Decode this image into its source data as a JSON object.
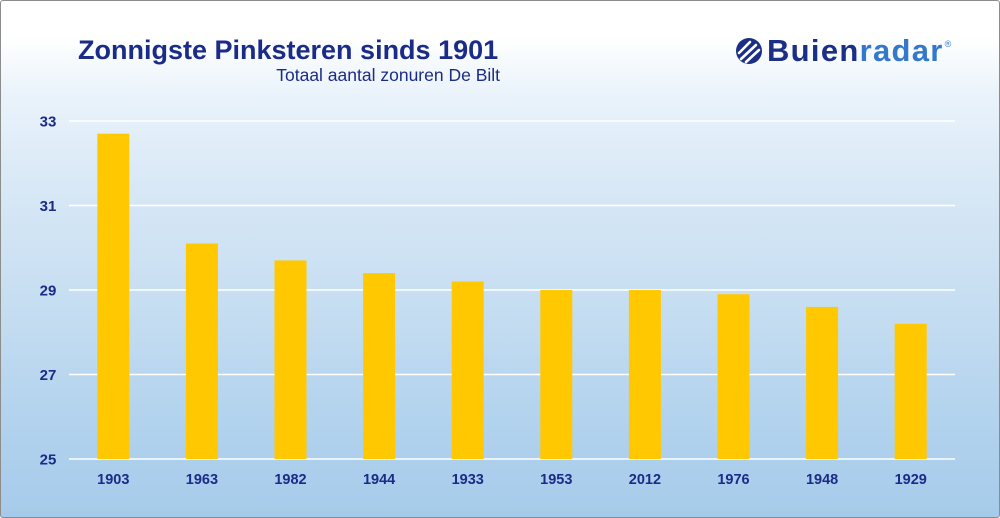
{
  "logo": {
    "icon": "buienradar-logo-icon",
    "text_dark": "Buien",
    "text_light": "radar",
    "registered": "®"
  },
  "colors": {
    "text": "#1b2b88",
    "logo_dark": "#1c2f86",
    "logo_light": "#3478cc"
  },
  "chart_data": {
    "type": "bar",
    "title": "Zonnigste Pinksteren sinds 1901",
    "subtitle": "Totaal aantal zonuren De Bilt",
    "xlabel": "",
    "ylabel": "",
    "categories": [
      "1903",
      "1963",
      "1982",
      "1944",
      "1933",
      "1953",
      "2012",
      "1976",
      "1948",
      "1929"
    ],
    "values": [
      32.7,
      30.1,
      29.7,
      29.4,
      29.2,
      29.0,
      29.0,
      28.9,
      28.6,
      28.2
    ],
    "ylim": [
      25,
      33
    ],
    "yticks": [
      25,
      27,
      29,
      31,
      33
    ],
    "grid": true,
    "bar_color": "#ffc800",
    "grid_color": "#ffffff"
  }
}
